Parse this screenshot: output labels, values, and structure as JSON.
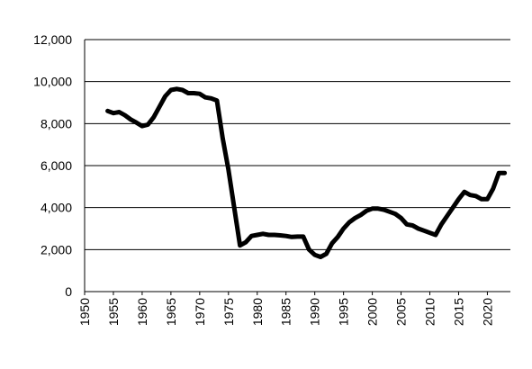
{
  "chart_data": {
    "type": "line",
    "title": "",
    "xlabel": "",
    "ylabel": "",
    "ylim": [
      0,
      12000
    ],
    "yticks": [
      0,
      2000,
      4000,
      6000,
      8000,
      10000,
      12000
    ],
    "ytick_labels": [
      "0",
      "2,000",
      "4,000",
      "6,000",
      "8,000",
      "10,000",
      "12,000"
    ],
    "xlim": [
      1950,
      2024
    ],
    "xticks": [
      1950,
      1955,
      1960,
      1965,
      1970,
      1975,
      1980,
      1985,
      1990,
      1995,
      2000,
      2005,
      2010,
      2015,
      2020
    ],
    "xtick_labels": [
      "1950",
      "1955",
      "1960",
      "1965",
      "1970",
      "1975",
      "1980",
      "1985",
      "1990",
      "1995",
      "2000",
      "2005",
      "2010",
      "2015",
      "2020"
    ],
    "grid": "horizontal",
    "line_color": "#000000",
    "series": [
      {
        "x": [
          1954,
          1955,
          1956,
          1957,
          1958,
          1959,
          1960,
          1961,
          1962,
          1963,
          1964,
          1965,
          1966,
          1967,
          1968,
          1969,
          1970,
          1971,
          1972,
          1973,
          1974,
          1975,
          1976,
          1977,
          1978,
          1979,
          1980,
          1981,
          1982,
          1983,
          1984,
          1985,
          1986,
          1987,
          1988,
          1989,
          1990,
          1991,
          1992,
          1993,
          1994,
          1995,
          1996,
          1997,
          1998,
          1999,
          2000,
          2001,
          2002,
          2003,
          2004,
          2005,
          2006,
          2007,
          2008,
          2009,
          2010,
          2011,
          2012,
          2013,
          2014,
          2015,
          2016,
          2017,
          2018,
          2019,
          2020,
          2021,
          2022,
          2023
        ],
        "values": [
          8600,
          8500,
          8550,
          8400,
          8200,
          8050,
          7880,
          7950,
          8300,
          8800,
          9300,
          9600,
          9650,
          9600,
          9450,
          9450,
          9420,
          9250,
          9200,
          9100,
          7300,
          5800,
          4000,
          2200,
          2350,
          2650,
          2700,
          2750,
          2700,
          2700,
          2680,
          2650,
          2600,
          2620,
          2620,
          2000,
          1750,
          1650,
          1800,
          2300,
          2600,
          3000,
          3300,
          3500,
          3650,
          3850,
          3950,
          3950,
          3900,
          3800,
          3700,
          3500,
          3200,
          3150,
          3000,
          2900,
          2800,
          2700,
          3200,
          3600,
          4000,
          4400,
          4750,
          4600,
          4550,
          4400,
          4400,
          4900,
          5650,
          5650
        ]
      }
    ]
  }
}
